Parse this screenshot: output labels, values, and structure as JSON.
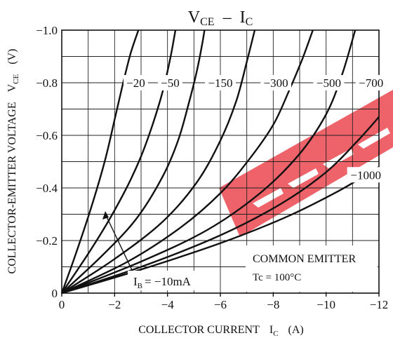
{
  "chart_data": {
    "type": "line",
    "title_main": "V",
    "title_main_sub": "CE",
    "title_dash": "–",
    "title_second": "I",
    "title_second_sub": "C",
    "xlabel_main": "COLLECTOR CURRENT",
    "xlabel_symbol": "I",
    "xlabel_symbol_sub": "C",
    "xlabel_unit": "(A)",
    "ylabel_main": "COLLECTOR-EMITTER VOLTAGE",
    "ylabel_symbol": "V",
    "ylabel_symbol_sub": "CE",
    "ylabel_unit": "(V)",
    "xlim": [
      0,
      -12
    ],
    "ylim": [
      0,
      -1.0
    ],
    "x_ticks": [
      0,
      -2,
      -4,
      -6,
      -8,
      -10,
      -12
    ],
    "x_tick_labels": [
      "0",
      "−2",
      "−4",
      "−6",
      "−8",
      "−10",
      "−12"
    ],
    "y_ticks": [
      0,
      -0.2,
      -0.4,
      -0.6,
      -0.8,
      -1.0
    ],
    "y_tick_labels": [
      "0",
      "−0.2",
      "−0.4",
      "−0.6",
      "−0.8",
      "−1.0"
    ],
    "x_minor_step": -1,
    "y_minor_step": -0.1,
    "grid": true,
    "series": [
      {
        "name": "−10mA",
        "x": [
          0,
          -0.5,
          -1.0,
          -1.4,
          -1.7,
          -2.0,
          -2.3,
          -2.6,
          -2.9
        ],
        "y": [
          0,
          -0.14,
          -0.29,
          -0.42,
          -0.53,
          -0.66,
          -0.79,
          -0.91,
          -1.0
        ]
      },
      {
        "name": "−20",
        "x": [
          0,
          -1.0,
          -1.8,
          -2.5,
          -3.0,
          -3.4,
          -3.8,
          -4.1,
          -4.3
        ],
        "y": [
          0,
          -0.15,
          -0.28,
          -0.41,
          -0.52,
          -0.63,
          -0.76,
          -0.89,
          -1.0
        ]
      },
      {
        "name": "−50",
        "x": [
          0,
          -1.5,
          -2.8,
          -3.8,
          -4.4,
          -4.8,
          -5.1,
          -5.3,
          -5.4
        ],
        "y": [
          0,
          -0.14,
          -0.28,
          -0.44,
          -0.58,
          -0.72,
          -0.84,
          -0.94,
          -1.0
        ]
      },
      {
        "name": "−150",
        "x": [
          0,
          -2.0,
          -3.8,
          -5.1,
          -6.0,
          -6.6,
          -7.0,
          -7.3
        ],
        "y": [
          0,
          -0.13,
          -0.27,
          -0.42,
          -0.58,
          -0.73,
          -0.88,
          -1.0
        ]
      },
      {
        "name": "−300",
        "x": [
          0,
          -2.5,
          -4.5,
          -6.0,
          -7.1,
          -8.0,
          -8.6,
          -9.1,
          -9.5
        ],
        "y": [
          0,
          -0.12,
          -0.25,
          -0.38,
          -0.51,
          -0.64,
          -0.77,
          -0.89,
          -1.0
        ]
      },
      {
        "name": "−500",
        "x": [
          0,
          -3.0,
          -5.5,
          -7.5,
          -9.0,
          -10.0,
          -10.6,
          -11.1
        ],
        "y": [
          0,
          -0.12,
          -0.24,
          -0.38,
          -0.53,
          -0.68,
          -0.83,
          -1.0
        ]
      },
      {
        "name": "−700",
        "x": [
          0,
          -3.0,
          -6.0,
          -8.3,
          -10.0,
          -11.2,
          -12.0
        ],
        "y": [
          0,
          -0.1,
          -0.22,
          -0.34,
          -0.46,
          -0.58,
          -0.67
        ]
      },
      {
        "name": "−1000",
        "x": [
          0,
          -3.0,
          -6.0,
          -8.5,
          -10.5,
          -12.0
        ],
        "y": [
          0,
          -0.09,
          -0.19,
          -0.29,
          -0.39,
          -0.48
        ]
      }
    ],
    "series_labels": [
      "−20",
      "−50",
      "−150",
      "−300",
      "−500",
      "−700",
      "−1000"
    ],
    "annotation_ib_prefix": "I",
    "annotation_ib_sub": "B",
    "annotation_ib_value": "= −10mA",
    "condition_line1": "COMMON EMITTER",
    "condition_line2": "Tc = 100°C",
    "watermark_color": "#e8202a",
    "curve_color": "#111111"
  }
}
